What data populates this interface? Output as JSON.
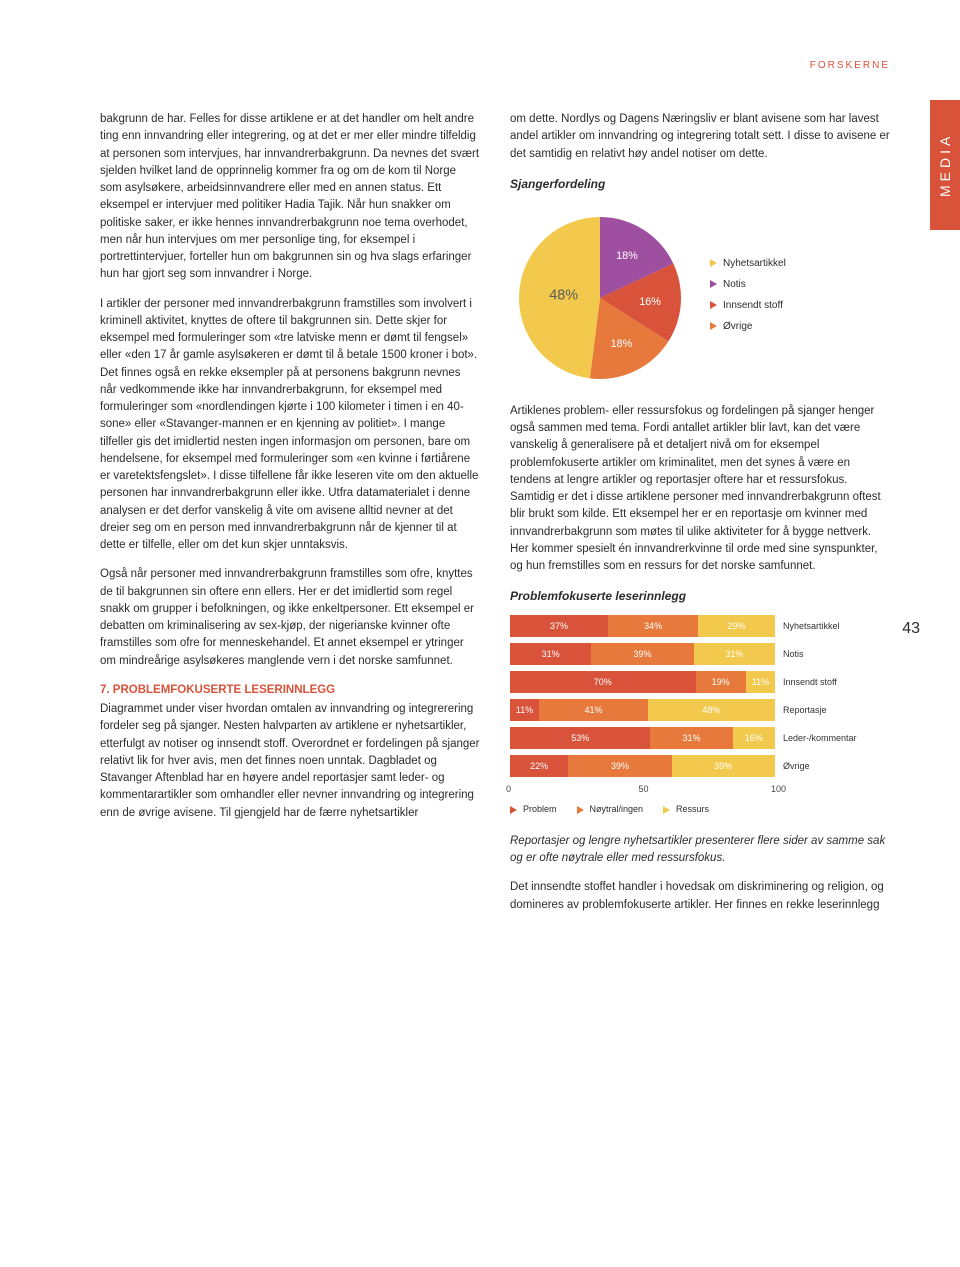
{
  "header": "FORSKERNE",
  "side_tab": "MEDIA",
  "page_number": "43",
  "left_col": {
    "p1": "bakgrunn de har. Felles for disse artiklene er at det handler om helt andre ting enn innvandring eller integrering, og at det er mer eller mindre tilfeldig at personen som intervjues, har innvandrerbakgrunn. Da nevnes det svært sjelden hvilket land de opprinnelig kommer fra og om de kom til Norge som asylsøkere, arbeidsinnvandrere eller med en annen status. Ett eksempel er intervjuer med politiker Hadia Tajik. Når hun snakker om politiske saker, er ikke hennes innvandrerbakgrunn noe tema overhodet, men når hun intervjues om mer personlige ting, for eksempel i portrettintervjuer, forteller hun om bakgrunnen sin og hva slags erfaringer hun har gjort seg som innvandrer i Norge.",
    "p2": "I artikler der personer med innvandrerbakgrunn framstilles som involvert i kriminell aktivitet, knyttes de oftere til bakgrunnen sin. Dette skjer for eksempel med formuleringer som «tre latviske menn er dømt til fengsel» eller «den 17 år gamle asylsøkeren er dømt til å betale 1500 kroner i bot». Det finnes også en rekke eksempler på at personens bakgrunn nevnes når vedkommende ikke har innvandrerbakgrunn, for eksempel med formuleringer som «nordlendingen kjørte i 100 kilometer i timen i en 40-sone» eller «Stavanger-mannen er en kjenning av politiet». I mange tilfeller gis det imidlertid nesten ingen informasjon om personen, bare om hendelsene, for eksempel med formuleringer som «en kvinne i førtiårene er varetektsfengslet». I disse tilfellene får ikke leseren vite om den aktuelle personen har innvandrerbakgrunn eller ikke. Utfra datamaterialet i denne analysen er det derfor vanskelig å vite om avisene alltid nevner at det dreier seg om en person med innvandrerbakgrunn når de kjenner til at dette er tilfelle, eller om det kun skjer unntaksvis.",
    "p3": "Også når personer med innvandrerbakgrunn framstilles som ofre, knyttes de til bakgrunnen sin oftere enn ellers. Her er det imidlertid som regel snakk om grupper i befolkningen, og ikke enkeltpersoner. Ett eksempel er debatten om kriminalisering av sex-kjøp, der nigerianske kvinner ofte framstilles som ofre for menneskehandel. Et annet eksempel er ytringer om mindreårige asylsøkeres manglende vern i det norske samfunnet.",
    "sect": "7. PROBLEMFOKUSERTE LESERINNLEGG",
    "p4": "Diagrammet under viser hvordan omtalen av innvandring og integrerering fordeler seg på sjanger. Nesten halvparten av artiklene er nyhetsartikler, etterfulgt av notiser og innsendt stoff. Overordnet er fordelingen på sjanger relativt lik for hver avis, men det finnes noen unntak. Dagbladet og Stavanger Aftenblad har en høyere andel reportasjer samt leder- og kommentarartikler som omhandler eller nevner innvandring og integrering enn de øvrige avisene. Til gjengjeld har de færre nyhetsartikler"
  },
  "right_col": {
    "p1": "om dette. Nordlys og Dagens Næringsliv er blant avisene som har lavest andel artikler om innvandring og integrering totalt sett. I disse to avisene er det samtidig en relativt høy andel notiser om dette.",
    "pie_title": "Sjangerfordeling",
    "p2": "Artiklenes problem- eller ressursfokus og fordelingen på sjanger henger også sammen med tema. Fordi antallet artikler blir lavt, kan det være vanskelig å generalisere på et detaljert nivå om for eksempel problemfokuserte artikler om kriminalitet, men det synes å være en tendens at lengre artikler og reportasjer oftere har et ressursfokus. Samtidig er det i disse artiklene personer med innvandrerbakgrunn oftest blir brukt som kilde. Ett eksempel her er en reportasje om kvinner med innvandrerbakgrunn som møtes til ulike aktiviteter for å bygge nettverk. Her kommer spesielt én innvandrerkvinne til orde med sine synspunkter, og hun fremstilles som en ressurs for det norske samfunnet.",
    "bar_title": "Problemfokuserte leserinnlegg",
    "p3": "Reportasjer og lengre nyhetsartikler presenterer flere sider av samme sak og er ofte nøytrale eller med ressursfokus.",
    "p4": "Det innsendte stoffet handler i hovedsak om diskriminering og religion, og domineres av problemfokuserte artikler. Her finnes en rekke leserinnlegg"
  },
  "pie_chart": {
    "type": "pie",
    "slices": [
      {
        "label": "Nyhetsartikkel",
        "value": 48,
        "color": "#f2c94c",
        "label_pct": "48%"
      },
      {
        "label": "Notis",
        "value": 18,
        "color": "#9f4f9f",
        "label_pct": "18%"
      },
      {
        "label": "Innsendt stoff",
        "value": 16,
        "color": "#d9533b",
        "label_pct": "16%"
      },
      {
        "label": "Øvrige",
        "value": 18,
        "color": "#e6793b",
        "label_pct": "18%"
      }
    ],
    "label_color": "#ffffff",
    "label_pct_big": "#5a5a5a"
  },
  "stacked_chart": {
    "type": "stacked-bar-horizontal",
    "xmax": 100,
    "xticks": [
      0,
      50,
      100
    ],
    "legend": [
      {
        "name": "Problem",
        "color": "#d9533b"
      },
      {
        "name": "Nøytral/ingen",
        "color": "#e6793b"
      },
      {
        "name": "Ressurs",
        "color": "#f2c94c"
      }
    ],
    "rows": [
      {
        "label": "Nyhetsartikkel",
        "segs": [
          {
            "v": 37,
            "t": "37%",
            "c": "#d9533b"
          },
          {
            "v": 34,
            "t": "34%",
            "c": "#e6793b"
          },
          {
            "v": 29,
            "t": "29%",
            "c": "#f2c94c"
          }
        ]
      },
      {
        "label": "Notis",
        "segs": [
          {
            "v": 31,
            "t": "31%",
            "c": "#d9533b"
          },
          {
            "v": 39,
            "t": "39%",
            "c": "#e6793b"
          },
          {
            "v": 31,
            "t": "31%",
            "c": "#f2c94c"
          }
        ]
      },
      {
        "label": "Innsendt stoff",
        "segs": [
          {
            "v": 70,
            "t": "70%",
            "c": "#d9533b"
          },
          {
            "v": 19,
            "t": "19%",
            "c": "#e6793b"
          },
          {
            "v": 11,
            "t": "11%",
            "c": "#f2c94c"
          }
        ]
      },
      {
        "label": "Reportasje",
        "segs": [
          {
            "v": 11,
            "t": "11%",
            "c": "#d9533b"
          },
          {
            "v": 41,
            "t": "41%",
            "c": "#e6793b"
          },
          {
            "v": 48,
            "t": "48%",
            "c": "#f2c94c"
          }
        ]
      },
      {
        "label": "Leder-/kommentar",
        "segs": [
          {
            "v": 53,
            "t": "53%",
            "c": "#d9533b"
          },
          {
            "v": 31,
            "t": "31%",
            "c": "#e6793b"
          },
          {
            "v": 16,
            "t": "16%",
            "c": "#f2c94c"
          }
        ]
      },
      {
        "label": "Øvrige",
        "segs": [
          {
            "v": 22,
            "t": "22%",
            "c": "#d9533b"
          },
          {
            "v": 39,
            "t": "39%",
            "c": "#e6793b"
          },
          {
            "v": 39,
            "t": "39%",
            "c": "#f2c94c"
          }
        ]
      }
    ]
  }
}
